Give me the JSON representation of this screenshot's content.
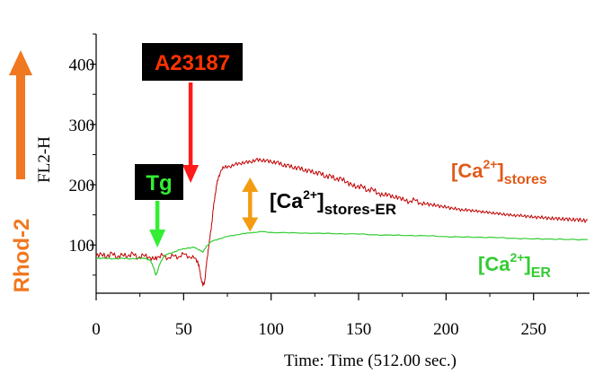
{
  "chart_data": {
    "type": "line",
    "ylabel": "FL2-H",
    "xlabel": "Time: Time (512.00 sec.)",
    "xlim": [
      0,
      282
    ],
    "ylim": [
      20,
      450
    ],
    "x_ticks": [
      0,
      50,
      100,
      150,
      200,
      250
    ],
    "y_ticks": [
      100,
      200,
      300,
      400
    ],
    "grid": false,
    "series": [
      {
        "label": "[Ca2+]stores",
        "label_parts": {
          "base": "[Ca",
          "sup": "2+",
          "mid": "]",
          "sub": "stores"
        },
        "color": "#c00000",
        "points": [
          [
            0,
            82
          ],
          [
            3,
            85
          ],
          [
            6,
            80
          ],
          [
            9,
            87
          ],
          [
            12,
            79
          ],
          [
            15,
            84
          ],
          [
            18,
            81
          ],
          [
            21,
            86
          ],
          [
            24,
            78
          ],
          [
            27,
            83
          ],
          [
            30,
            80
          ],
          [
            33,
            76
          ],
          [
            35,
            80
          ],
          [
            38,
            83
          ],
          [
            41,
            78
          ],
          [
            44,
            82
          ],
          [
            47,
            80
          ],
          [
            50,
            85
          ],
          [
            53,
            81
          ],
          [
            56,
            78
          ],
          [
            58,
            74
          ],
          [
            59,
            60
          ],
          [
            60,
            45
          ],
          [
            61,
            32
          ],
          [
            62,
            40
          ],
          [
            63,
            65
          ],
          [
            64,
            92
          ],
          [
            65,
            110
          ],
          [
            66,
            135
          ],
          [
            67,
            160
          ],
          [
            68,
            185
          ],
          [
            69,
            200
          ],
          [
            70,
            215
          ],
          [
            72,
            225
          ],
          [
            74,
            232
          ],
          [
            77,
            228
          ],
          [
            80,
            237
          ],
          [
            83,
            233
          ],
          [
            86,
            240
          ],
          [
            89,
            236
          ],
          [
            92,
            244
          ],
          [
            95,
            238
          ],
          [
            98,
            242
          ],
          [
            101,
            235
          ],
          [
            104,
            239
          ],
          [
            107,
            230
          ],
          [
            110,
            234
          ],
          [
            113,
            226
          ],
          [
            116,
            230
          ],
          [
            119,
            222
          ],
          [
            122,
            225
          ],
          [
            125,
            218
          ],
          [
            128,
            221
          ],
          [
            131,
            212
          ],
          [
            134,
            216
          ],
          [
            137,
            208
          ],
          [
            140,
            211
          ],
          [
            143,
            204
          ],
          [
            146,
            200
          ],
          [
            149,
            196
          ],
          [
            152,
            198
          ],
          [
            155,
            190
          ],
          [
            158,
            193
          ],
          [
            161,
            186
          ],
          [
            164,
            182
          ],
          [
            167,
            185
          ],
          [
            170,
            178
          ],
          [
            173,
            180
          ],
          [
            176,
            174
          ],
          [
            179,
            172
          ],
          [
            182,
            175
          ],
          [
            185,
            170
          ],
          [
            188,
            167
          ],
          [
            191,
            169
          ],
          [
            194,
            164
          ],
          [
            197,
            166
          ],
          [
            200,
            161
          ],
          [
            203,
            163
          ],
          [
            206,
            158
          ],
          [
            209,
            160
          ],
          [
            212,
            156
          ],
          [
            215,
            159
          ],
          [
            218,
            154
          ],
          [
            221,
            157
          ],
          [
            224,
            152
          ],
          [
            227,
            155
          ],
          [
            230,
            150
          ],
          [
            233,
            153
          ],
          [
            236,
            148
          ],
          [
            239,
            151
          ],
          [
            242,
            147
          ],
          [
            245,
            150
          ],
          [
            248,
            145
          ],
          [
            251,
            148
          ],
          [
            254,
            144
          ],
          [
            257,
            147
          ],
          [
            260,
            142
          ],
          [
            263,
            146
          ],
          [
            266,
            141
          ],
          [
            269,
            145
          ],
          [
            272,
            140
          ],
          [
            275,
            144
          ],
          [
            278,
            139
          ],
          [
            281,
            142
          ]
        ]
      },
      {
        "label": "[Ca2+]ER",
        "label_parts": {
          "base": "[Ca",
          "sup": "2+",
          "mid": "]",
          "sub": "ER"
        },
        "color": "#33cc33",
        "points": [
          [
            0,
            78
          ],
          [
            5,
            78
          ],
          [
            10,
            77
          ],
          [
            15,
            78
          ],
          [
            20,
            77
          ],
          [
            25,
            78
          ],
          [
            28,
            78
          ],
          [
            31,
            74
          ],
          [
            33,
            62
          ],
          [
            34,
            50
          ],
          [
            35,
            55
          ],
          [
            36,
            66
          ],
          [
            38,
            78
          ],
          [
            40,
            84
          ],
          [
            44,
            88
          ],
          [
            48,
            92
          ],
          [
            52,
            95
          ],
          [
            56,
            96
          ],
          [
            59,
            92
          ],
          [
            61,
            88
          ],
          [
            63,
            98
          ],
          [
            66,
            106
          ],
          [
            70,
            110
          ],
          [
            75,
            114
          ],
          [
            80,
            117
          ],
          [
            85,
            119
          ],
          [
            90,
            121
          ],
          [
            95,
            122
          ],
          [
            100,
            121
          ],
          [
            110,
            120
          ],
          [
            120,
            120
          ],
          [
            130,
            119
          ],
          [
            140,
            119
          ],
          [
            150,
            118
          ],
          [
            160,
            117
          ],
          [
            170,
            116
          ],
          [
            180,
            116
          ],
          [
            190,
            115
          ],
          [
            200,
            114
          ],
          [
            210,
            113
          ],
          [
            220,
            113
          ],
          [
            230,
            112
          ],
          [
            240,
            111
          ],
          [
            250,
            110
          ],
          [
            260,
            110
          ],
          [
            270,
            109
          ],
          [
            281,
            109
          ]
        ]
      }
    ],
    "annotations": {
      "tg": {
        "text": "Tg",
        "color": "#33ee33",
        "box": "#000000",
        "x": 35
      },
      "a23187": {
        "text": "A23187",
        "color": "#ff3300",
        "box": "#000000",
        "x": 54
      },
      "difference": {
        "label_parts": {
          "base": "[Ca",
          "sup": "2+",
          "mid": "]",
          "sub": "stores-ER"
        },
        "color": "#f39c12",
        "x": 88,
        "y_from": 122,
        "y_to": 212
      },
      "dye": {
        "text": "Rhod-2",
        "color": "#f07820"
      }
    }
  }
}
